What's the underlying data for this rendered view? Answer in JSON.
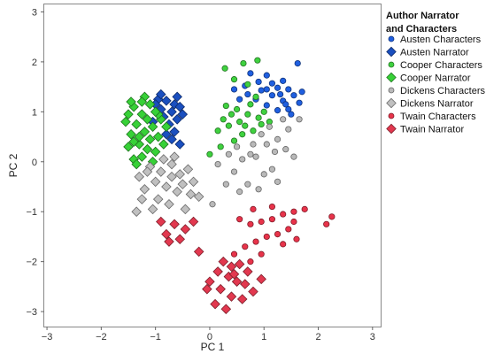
{
  "chart_data": {
    "type": "scatter",
    "xlabel": "PC 1",
    "ylabel": "PC 2",
    "xlim": [
      -3.05,
      3.15
    ],
    "ylim": [
      -3.3,
      3.15
    ],
    "xticks": [
      -3,
      -2,
      -1,
      0,
      1,
      2,
      3
    ],
    "yticks": [
      -3,
      -2,
      -1,
      0,
      1,
      2,
      3
    ],
    "grid": false,
    "legend": {
      "title_lines": [
        "Author Narrator",
        "and Characters"
      ],
      "placement": "right"
    },
    "series": [
      {
        "name": "Austen Characters",
        "marker": "circle",
        "color": "#1f5fe0",
        "points": [
          [
            1.62,
            1.97
          ],
          [
            0.75,
            1.77
          ],
          [
            1.05,
            1.73
          ],
          [
            1.35,
            1.62
          ],
          [
            0.65,
            1.52
          ],
          [
            1.25,
            1.48
          ],
          [
            1.45,
            1.45
          ],
          [
            0.95,
            1.43
          ],
          [
            1.15,
            1.33
          ],
          [
            1.55,
            1.33
          ],
          [
            0.55,
            1.25
          ],
          [
            0.85,
            1.25
          ],
          [
            1.35,
            1.22
          ],
          [
            1.65,
            1.18
          ],
          [
            1.05,
            1.13
          ],
          [
            1.25,
            1.03
          ],
          [
            1.45,
            1.05
          ],
          [
            0.45,
            1.45
          ],
          [
            1.15,
            1.57
          ],
          [
            1.5,
            0.95
          ],
          [
            0.9,
            1.6
          ],
          [
            1.3,
            1.35
          ],
          [
            1.7,
            1.4
          ],
          [
            0.7,
            1.35
          ],
          [
            1.05,
            1.45
          ],
          [
            1.4,
            1.15
          ]
        ]
      },
      {
        "name": "Austen Narrator",
        "marker": "diamond",
        "color": "#1a4fbf",
        "points": [
          [
            -0.95,
            1.25
          ],
          [
            -0.8,
            1.22
          ],
          [
            -0.65,
            1.15
          ],
          [
            -0.9,
            1.05
          ],
          [
            -0.7,
            1.0
          ],
          [
            -0.55,
            1.1
          ],
          [
            -0.85,
            0.9
          ],
          [
            -0.6,
            0.85
          ],
          [
            -0.75,
            0.75
          ],
          [
            -1.0,
            1.15
          ],
          [
            -0.5,
            0.95
          ],
          [
            -0.65,
            0.6
          ],
          [
            -0.8,
            0.55
          ],
          [
            -0.55,
            0.35
          ],
          [
            -0.7,
            0.45
          ],
          [
            -1.05,
            0.8
          ],
          [
            -0.9,
            1.35
          ],
          [
            -0.6,
            1.3
          ]
        ]
      },
      {
        "name": "Cooper Characters",
        "marker": "circle",
        "color": "#3fd13f",
        "points": [
          [
            0.28,
            1.87
          ],
          [
            0.62,
            1.97
          ],
          [
            0.88,
            2.03
          ],
          [
            0.45,
            1.65
          ],
          [
            0.7,
            1.55
          ],
          [
            0.3,
            1.12
          ],
          [
            0.5,
            1.05
          ],
          [
            0.7,
            0.95
          ],
          [
            0.9,
            0.88
          ],
          [
            0.55,
            0.8
          ],
          [
            0.35,
            0.72
          ],
          [
            0.15,
            0.62
          ],
          [
            0.8,
            0.62
          ],
          [
            0.95,
            0.75
          ],
          [
            0.6,
            0.55
          ],
          [
            0.45,
            0.42
          ],
          [
            0.2,
            0.3
          ],
          [
            0.0,
            0.15
          ],
          [
            0.75,
            1.15
          ],
          [
            1.0,
            1.0
          ],
          [
            0.85,
            1.3
          ],
          [
            0.4,
            0.95
          ],
          [
            0.65,
            0.72
          ],
          [
            1.1,
            0.8
          ],
          [
            0.25,
            0.85
          ]
        ]
      },
      {
        "name": "Cooper Narrator",
        "marker": "diamond",
        "color": "#37d137",
        "points": [
          [
            -1.4,
            1.1
          ],
          [
            -1.25,
            0.95
          ],
          [
            -1.1,
            1.15
          ],
          [
            -1.35,
            0.75
          ],
          [
            -1.2,
            0.6
          ],
          [
            -1.45,
            0.55
          ],
          [
            -1.05,
            0.7
          ],
          [
            -0.95,
            0.5
          ],
          [
            -1.3,
            0.35
          ],
          [
            -1.15,
            0.25
          ],
          [
            -1.5,
            0.3
          ],
          [
            -1.0,
            0.2
          ],
          [
            -0.85,
            0.35
          ],
          [
            -1.4,
            0.05
          ],
          [
            -1.25,
            0.1
          ],
          [
            -1.1,
            0.45
          ],
          [
            -1.55,
            0.8
          ],
          [
            -1.2,
            1.3
          ],
          [
            -0.9,
            0.85
          ],
          [
            -1.35,
            -0.05
          ],
          [
            -1.05,
            0.0
          ],
          [
            -1.5,
            0.95
          ],
          [
            -1.45,
            1.2
          ],
          [
            -1.25,
            1.2
          ],
          [
            -0.95,
            0.95
          ],
          [
            -1.3,
            0.5
          ],
          [
            -0.8,
            0.7
          ],
          [
            -1.15,
            0.85
          ],
          [
            -1.4,
            0.4
          ],
          [
            -1.0,
            1.0
          ]
        ]
      },
      {
        "name": "Dickens Characters",
        "marker": "circle",
        "color": "#b9b9b9",
        "points": [
          [
            1.65,
            0.85
          ],
          [
            1.45,
            0.65
          ],
          [
            1.25,
            0.45
          ],
          [
            1.05,
            0.35
          ],
          [
            0.85,
            0.1
          ],
          [
            0.6,
            0.05
          ],
          [
            0.35,
            0.15
          ],
          [
            0.15,
            -0.05
          ],
          [
            1.0,
            -0.25
          ],
          [
            1.25,
            -0.4
          ],
          [
            0.7,
            -0.45
          ],
          [
            0.45,
            -0.2
          ],
          [
            0.95,
            0.55
          ],
          [
            1.2,
            0.2
          ],
          [
            0.8,
            0.35
          ],
          [
            1.4,
            0.25
          ],
          [
            0.55,
            -0.6
          ],
          [
            0.9,
            -0.55
          ],
          [
            1.15,
            -0.15
          ],
          [
            0.5,
            0.3
          ],
          [
            1.55,
            0.1
          ],
          [
            0.3,
            -0.45
          ],
          [
            0.05,
            -0.85
          ],
          [
            1.1,
            0.7
          ],
          [
            1.35,
            0.85
          ],
          [
            0.75,
            0.15
          ]
        ]
      },
      {
        "name": "Dickens Narrator",
        "marker": "diamond",
        "color": "#c0c0c0",
        "points": [
          [
            -1.1,
            -0.1
          ],
          [
            -0.9,
            -0.2
          ],
          [
            -0.7,
            -0.05
          ],
          [
            -0.55,
            -0.25
          ],
          [
            -1.0,
            -0.4
          ],
          [
            -0.8,
            -0.5
          ],
          [
            -0.6,
            -0.6
          ],
          [
            -1.2,
            -0.55
          ],
          [
            -0.95,
            -0.75
          ],
          [
            -0.75,
            -0.85
          ],
          [
            -0.5,
            -0.45
          ],
          [
            -0.35,
            -0.65
          ],
          [
            -1.3,
            -0.3
          ],
          [
            -0.65,
            0.1
          ],
          [
            -0.85,
            0.05
          ],
          [
            -1.05,
            -0.95
          ],
          [
            -0.45,
            -0.95
          ],
          [
            -1.25,
            -0.75
          ],
          [
            -1.35,
            -1.0
          ],
          [
            -0.2,
            -0.7
          ],
          [
            -0.4,
            -0.15
          ],
          [
            -0.7,
            -0.3
          ],
          [
            -1.15,
            -0.2
          ],
          [
            -0.3,
            -0.4
          ]
        ]
      },
      {
        "name": "Twain Characters",
        "marker": "circle",
        "color": "#e8334a",
        "points": [
          [
            1.75,
            -0.95
          ],
          [
            1.55,
            -1.0
          ],
          [
            1.35,
            -1.05
          ],
          [
            1.15,
            -1.15
          ],
          [
            0.95,
            -1.2
          ],
          [
            0.75,
            -1.25
          ],
          [
            0.55,
            -1.15
          ],
          [
            1.45,
            -1.35
          ],
          [
            1.25,
            -1.45
          ],
          [
            1.05,
            -1.5
          ],
          [
            0.85,
            -1.6
          ],
          [
            0.65,
            -1.7
          ],
          [
            0.45,
            -1.85
          ],
          [
            1.6,
            -1.55
          ],
          [
            2.25,
            -1.1
          ],
          [
            2.15,
            -1.25
          ],
          [
            1.35,
            -1.65
          ],
          [
            0.95,
            -1.85
          ],
          [
            0.75,
            -2.0
          ],
          [
            1.55,
            -1.2
          ],
          [
            1.15,
            -0.9
          ],
          [
            0.8,
            -0.95
          ]
        ]
      },
      {
        "name": "Twain Narrator",
        "marker": "diamond",
        "color": "#e2384f",
        "points": [
          [
            0.25,
            -2.0
          ],
          [
            0.4,
            -2.1
          ],
          [
            0.55,
            -2.05
          ],
          [
            0.7,
            -2.2
          ],
          [
            0.35,
            -2.3
          ],
          [
            0.5,
            -2.4
          ],
          [
            0.65,
            -2.45
          ],
          [
            0.2,
            -2.55
          ],
          [
            0.8,
            -2.6
          ],
          [
            0.4,
            -2.7
          ],
          [
            0.1,
            -2.85
          ],
          [
            0.3,
            -2.95
          ],
          [
            -0.05,
            -2.55
          ],
          [
            0.6,
            -2.75
          ],
          [
            0.15,
            -2.2
          ],
          [
            0.95,
            -2.35
          ],
          [
            -0.9,
            -1.2
          ],
          [
            -0.65,
            -1.25
          ],
          [
            -0.8,
            -1.45
          ],
          [
            -0.55,
            -1.55
          ],
          [
            -0.45,
            -1.35
          ],
          [
            -0.3,
            -1.2
          ],
          [
            -0.75,
            -1.6
          ],
          [
            -0.2,
            -1.8
          ],
          [
            0.45,
            -2.25
          ],
          [
            0.0,
            -2.4
          ]
        ]
      }
    ]
  }
}
